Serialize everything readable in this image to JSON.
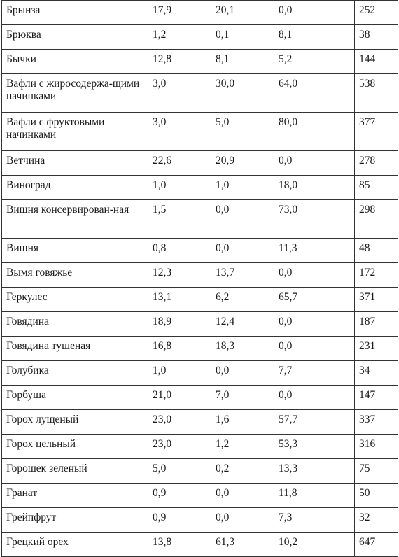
{
  "rows": [
    {
      "name": "Брынза",
      "c1": "17,9",
      "c2": "20,1",
      "c3": "0,0",
      "c4": "252"
    },
    {
      "name": "Брюква",
      "c1": "1,2",
      "c2": "0,1",
      "c3": "8,1",
      "c4": "38"
    },
    {
      "name": "Бычки",
      "c1": "12,8",
      "c2": "8,1",
      "c3": "5,2",
      "c4": "144"
    },
    {
      "name": "Вафли с жиросодержа-щими начинками",
      "c1": "3,0",
      "c2": "30,0",
      "c3": "64,0",
      "c4": "538"
    },
    {
      "name": "Вафли с фруктовыми начинками",
      "c1": "3,0",
      "c2": "5,0",
      "c3": "80,0",
      "c4": "377"
    },
    {
      "name": "Ветчина",
      "c1": "22,6",
      "c2": "20,9",
      "c3": "0,0",
      "c4": "278"
    },
    {
      "name": "Виноград",
      "c1": "1,0",
      "c2": "1,0",
      "c3": "18,0",
      "c4": "85"
    },
    {
      "name": "Вишня консервирован-ная",
      "c1": "1,5",
      "c2": "0,0",
      "c3": "73,0",
      "c4": "298"
    },
    {
      "name": "Вишня",
      "c1": "0,8",
      "c2": "0,0",
      "c3": "11,3",
      "c4": "48"
    },
    {
      "name": "Вымя говяжье",
      "c1": "12,3",
      "c2": "13,7",
      "c3": "0,0",
      "c4": "172"
    },
    {
      "name": "Геркулес",
      "c1": "13,1",
      "c2": "6,2",
      "c3": "65,7",
      "c4": "371"
    },
    {
      "name": "Говядина",
      "c1": "18,9",
      "c2": "12,4",
      "c3": "0,0",
      "c4": "187"
    },
    {
      "name": "Говядина тушеная",
      "c1": "16,8",
      "c2": "18,3",
      "c3": "0,0",
      "c4": "231"
    },
    {
      "name": "Голубика",
      "c1": "1,0",
      "c2": "0,0",
      "c3": "7,7",
      "c4": "34"
    },
    {
      "name": "Горбуша",
      "c1": "21,0",
      "c2": "7,0",
      "c3": "0,0",
      "c4": "147"
    },
    {
      "name": "Горох лущеный",
      "c1": "23,0",
      "c2": "1,6",
      "c3": "57,7",
      "c4": "337"
    },
    {
      "name": "Горох цельный",
      "c1": "23,0",
      "c2": "1,2",
      "c3": "53,3",
      "c4": "316"
    },
    {
      "name": "Горошек зеленый",
      "c1": "5,0",
      "c2": "0,2",
      "c3": "13,3",
      "c4": "75"
    },
    {
      "name": "Гранат",
      "c1": "0,9",
      "c2": "0,0",
      "c3": "11,8",
      "c4": "50"
    },
    {
      "name": "Грейпфрут",
      "c1": "0,9",
      "c2": "0,0",
      "c3": "7,3",
      "c4": "32"
    },
    {
      "name": "Грецкий орех",
      "c1": "13,8",
      "c2": "61,3",
      "c3": "10,2",
      "c4": "647"
    }
  ]
}
